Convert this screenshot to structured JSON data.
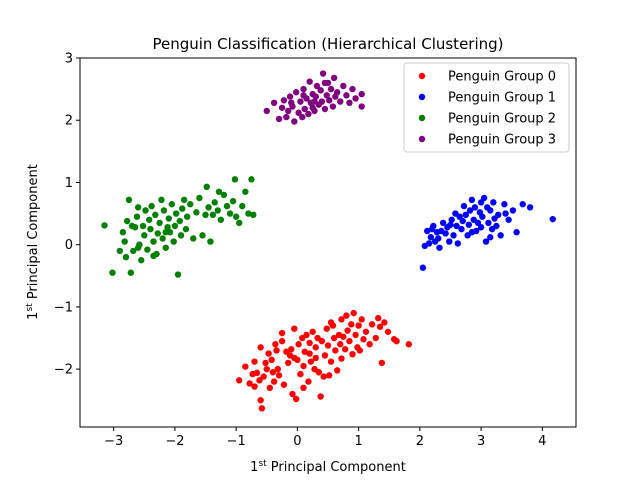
{
  "chart_data": {
    "type": "scatter",
    "title": "Penguin Classification (Hierarchical Clustering)",
    "xlabel": "1st Principal Component",
    "ylabel": "1st Principal Component",
    "xlim": [
      -3.55,
      4.55
    ],
    "ylim": [
      -2.93,
      3.0
    ],
    "x_ticks": [
      -3,
      -2,
      -1,
      0,
      1,
      2,
      3,
      4
    ],
    "y_ticks": [
      -2,
      -1,
      0,
      1,
      2,
      3
    ],
    "x_tick_labels": [
      "−3",
      "−2",
      "−1",
      "0",
      "1",
      "2",
      "3",
      "4"
    ],
    "y_tick_labels": [
      "−2",
      "−1",
      "0",
      "1",
      "2",
      "3"
    ],
    "legend_position": "upper right",
    "grid": false,
    "series": [
      {
        "name": "Penguin Group 0",
        "color": "#ff0000",
        "points": [
          [
            -0.95,
            -2.18
          ],
          [
            -0.85,
            -1.96
          ],
          [
            -0.78,
            -2.23
          ],
          [
            -0.73,
            -2.08
          ],
          [
            -0.7,
            -2.28
          ],
          [
            -0.66,
            -2.06
          ],
          [
            -0.62,
            -2.18
          ],
          [
            -0.6,
            -1.65
          ],
          [
            -0.6,
            -2.5
          ],
          [
            -0.58,
            -2.63
          ],
          [
            -0.55,
            -2.12
          ],
          [
            -0.52,
            -1.9
          ],
          [
            -0.5,
            -2.0
          ],
          [
            -0.47,
            -1.75
          ],
          [
            -0.45,
            -2.3
          ],
          [
            -0.42,
            -1.85
          ],
          [
            -0.4,
            -2.05
          ],
          [
            -0.38,
            -2.2
          ],
          [
            -0.36,
            -1.6
          ],
          [
            -0.34,
            -1.7
          ],
          [
            -0.32,
            -2.0
          ],
          [
            -0.3,
            -2.1
          ],
          [
            -0.25,
            -1.55
          ],
          [
            -0.22,
            -2.25
          ],
          [
            -0.18,
            -1.72
          ],
          [
            -0.15,
            -1.9
          ],
          [
            -0.12,
            -1.78
          ],
          [
            -0.1,
            -1.68
          ],
          [
            -0.08,
            -2.4
          ],
          [
            -0.05,
            -1.35
          ],
          [
            -0.05,
            -1.82
          ],
          [
            -0.02,
            -2.48
          ],
          [
            0.0,
            -1.85
          ],
          [
            0.02,
            -1.6
          ],
          [
            0.05,
            -2.08
          ],
          [
            0.08,
            -1.5
          ],
          [
            0.1,
            -1.95
          ],
          [
            0.12,
            -1.72
          ],
          [
            0.15,
            -1.45
          ],
          [
            0.18,
            -2.2
          ],
          [
            0.2,
            -1.58
          ],
          [
            0.2,
            -1.75
          ],
          [
            0.22,
            -1.88
          ],
          [
            0.25,
            -1.4
          ],
          [
            0.28,
            -2.0
          ],
          [
            0.3,
            -1.65
          ],
          [
            0.3,
            -1.82
          ],
          [
            0.33,
            -1.5
          ],
          [
            0.35,
            -2.05
          ],
          [
            0.38,
            -2.44
          ],
          [
            0.4,
            -1.55
          ],
          [
            0.43,
            -2.12
          ],
          [
            0.45,
            -1.78
          ],
          [
            0.48,
            -1.35
          ],
          [
            0.5,
            -1.62
          ],
          [
            0.52,
            -2.1
          ],
          [
            0.55,
            -1.88
          ],
          [
            0.58,
            -1.3
          ],
          [
            0.6,
            -1.5
          ],
          [
            0.62,
            -1.7
          ],
          [
            0.65,
            -2.02
          ],
          [
            0.68,
            -1.45
          ],
          [
            0.7,
            -1.6
          ],
          [
            0.72,
            -1.2
          ],
          [
            0.72,
            -1.83
          ],
          [
            0.75,
            -1.48
          ],
          [
            0.78,
            -1.68
          ],
          [
            0.8,
            -1.14
          ],
          [
            0.82,
            -1.38
          ],
          [
            0.85,
            -1.55
          ],
          [
            0.88,
            -1.28
          ],
          [
            0.9,
            -1.76
          ],
          [
            0.92,
            -1.1
          ],
          [
            0.95,
            -1.45
          ],
          [
            0.98,
            -1.65
          ],
          [
            1.0,
            -1.3
          ],
          [
            1.05,
            -1.2
          ],
          [
            1.08,
            -1.52
          ],
          [
            1.12,
            -1.4
          ],
          [
            1.18,
            -1.6
          ],
          [
            1.22,
            -1.28
          ],
          [
            1.28,
            -1.5
          ],
          [
            1.32,
            -1.18
          ],
          [
            1.35,
            -1.32
          ],
          [
            1.38,
            -1.9
          ],
          [
            1.42,
            -1.25
          ],
          [
            1.48,
            -1.4
          ],
          [
            1.58,
            -1.52
          ],
          [
            1.62,
            -1.55
          ],
          [
            1.82,
            -1.6
          ],
          [
            -0.25,
            -1.42
          ],
          [
            0.55,
            -1.25
          ],
          [
            1.02,
            -1.7
          ],
          [
            -0.7,
            -1.88
          ],
          [
            0.1,
            -2.3
          ]
        ]
      },
      {
        "name": "Penguin Group 1",
        "color": "#0000ff",
        "points": [
          [
            2.05,
            -0.37
          ],
          [
            2.08,
            -0.02
          ],
          [
            2.12,
            0.22
          ],
          [
            2.15,
            0.02
          ],
          [
            2.18,
            0.12
          ],
          [
            2.2,
            0.25
          ],
          [
            2.22,
            0.3
          ],
          [
            2.25,
            0.05
          ],
          [
            2.28,
            0.2
          ],
          [
            2.3,
            0.1
          ],
          [
            2.32,
            -0.05
          ],
          [
            2.35,
            0.22
          ],
          [
            2.38,
            0.35
          ],
          [
            2.42,
            0.18
          ],
          [
            2.45,
            0.28
          ],
          [
            2.48,
            0.05
          ],
          [
            2.52,
            0.4
          ],
          [
            2.55,
            0.15
          ],
          [
            2.58,
            0.5
          ],
          [
            2.6,
            0.3
          ],
          [
            2.62,
            0.02
          ],
          [
            2.65,
            0.45
          ],
          [
            2.68,
            0.25
          ],
          [
            2.7,
            0.38
          ],
          [
            2.72,
            0.62
          ],
          [
            2.75,
            0.48
          ],
          [
            2.78,
            0.15
          ],
          [
            2.8,
            0.32
          ],
          [
            2.82,
            0.55
          ],
          [
            2.85,
            0.72
          ],
          [
            2.88,
            0.4
          ],
          [
            2.9,
            0.6
          ],
          [
            2.92,
            0.22
          ],
          [
            2.95,
            0.35
          ],
          [
            2.98,
            0.52
          ],
          [
            3.0,
            0.28
          ],
          [
            3.02,
            0.45
          ],
          [
            3.05,
            0.75
          ],
          [
            3.08,
            0.05
          ],
          [
            3.1,
            0.6
          ],
          [
            3.12,
            0.35
          ],
          [
            3.15,
            0.55
          ],
          [
            3.18,
            0.25
          ],
          [
            3.2,
            0.68
          ],
          [
            3.22,
            0.42
          ],
          [
            3.25,
            0.3
          ],
          [
            3.28,
            0.48
          ],
          [
            3.32,
            0.15
          ],
          [
            3.38,
            0.65
          ],
          [
            3.45,
            0.4
          ],
          [
            3.52,
            0.55
          ],
          [
            3.58,
            0.2
          ],
          [
            3.68,
            0.65
          ],
          [
            3.8,
            0.6
          ],
          [
            4.17,
            0.41
          ],
          [
            3.0,
            0.68
          ],
          [
            2.85,
            0.2
          ],
          [
            3.15,
            0.12
          ],
          [
            2.5,
            0.32
          ],
          [
            3.4,
            0.5
          ]
        ]
      },
      {
        "name": "Penguin Group 2",
        "color": "#008000",
        "points": [
          [
            -3.15,
            0.31
          ],
          [
            -3.02,
            -0.45
          ],
          [
            -2.9,
            -0.1
          ],
          [
            -2.85,
            0.2
          ],
          [
            -2.82,
            0.05
          ],
          [
            -2.8,
            -0.2
          ],
          [
            -2.78,
            0.38
          ],
          [
            -2.75,
            0.72
          ],
          [
            -2.72,
            -0.45
          ],
          [
            -2.68,
            -0.1
          ],
          [
            -2.65,
            0.28
          ],
          [
            -2.62,
            0.45
          ],
          [
            -2.6,
            0.6
          ],
          [
            -2.58,
            0.0
          ],
          [
            -2.55,
            -0.25
          ],
          [
            -2.52,
            0.3
          ],
          [
            -2.5,
            0.15
          ],
          [
            -2.48,
            0.55
          ],
          [
            -2.45,
            -0.08
          ],
          [
            -2.42,
            0.4
          ],
          [
            -2.4,
            0.25
          ],
          [
            -2.38,
            0.62
          ],
          [
            -2.35,
            0.05
          ],
          [
            -2.32,
            0.48
          ],
          [
            -2.3,
            -0.15
          ],
          [
            -2.28,
            0.18
          ],
          [
            -2.25,
            0.35
          ],
          [
            -2.22,
            0.72
          ],
          [
            -2.2,
            0.1
          ],
          [
            -2.18,
            0.55
          ],
          [
            -2.15,
            -0.05
          ],
          [
            -2.12,
            0.28
          ],
          [
            -2.1,
            0.42
          ],
          [
            -2.08,
            0.2
          ],
          [
            -2.05,
            0.65
          ],
          [
            -2.02,
            0.05
          ],
          [
            -2.0,
            0.3
          ],
          [
            -1.98,
            0.5
          ],
          [
            -1.95,
            -0.48
          ],
          [
            -1.92,
            0.38
          ],
          [
            -1.9,
            0.15
          ],
          [
            -1.88,
            0.58
          ],
          [
            -1.85,
            0.72
          ],
          [
            -1.8,
            0.45
          ],
          [
            -1.75,
            0.65
          ],
          [
            -1.7,
            0.1
          ],
          [
            -1.65,
            0.52
          ],
          [
            -1.6,
            0.75
          ],
          [
            -1.55,
            0.15
          ],
          [
            -1.5,
            0.48
          ],
          [
            -1.48,
            0.93
          ],
          [
            -1.45,
            0.6
          ],
          [
            -1.42,
            0.05
          ],
          [
            -1.38,
            0.48
          ],
          [
            -1.35,
            0.68
          ],
          [
            -1.3,
            0.55
          ],
          [
            -1.28,
            0.85
          ],
          [
            -1.25,
            0.4
          ],
          [
            -1.2,
            0.8
          ],
          [
            -1.15,
            0.62
          ],
          [
            -1.1,
            0.5
          ],
          [
            -1.05,
            0.7
          ],
          [
            -1.02,
            1.05
          ],
          [
            -1.0,
            0.45
          ],
          [
            -0.95,
            0.35
          ],
          [
            -0.9,
            0.62
          ],
          [
            -0.85,
            0.85
          ],
          [
            -0.8,
            0.5
          ],
          [
            -0.75,
            1.05
          ],
          [
            -0.72,
            0.48
          ],
          [
            -2.7,
            0.3
          ],
          [
            -2.35,
            -0.18
          ],
          [
            -2.6,
            -0.05
          ],
          [
            -2.15,
            0.2
          ],
          [
            -1.82,
            0.25
          ]
        ]
      },
      {
        "name": "Penguin Group 3",
        "color": "#800080",
        "points": [
          [
            -0.5,
            2.15
          ],
          [
            -0.38,
            2.28
          ],
          [
            -0.3,
            2.02
          ],
          [
            -0.25,
            2.2
          ],
          [
            -0.22,
            2.32
          ],
          [
            -0.18,
            2.05
          ],
          [
            -0.15,
            2.15
          ],
          [
            -0.12,
            2.38
          ],
          [
            -0.08,
            2.22
          ],
          [
            -0.05,
            1.98
          ],
          [
            -0.02,
            2.45
          ],
          [
            0.02,
            2.12
          ],
          [
            0.05,
            2.3
          ],
          [
            0.08,
            2.05
          ],
          [
            0.1,
            2.5
          ],
          [
            0.12,
            2.18
          ],
          [
            0.15,
            2.35
          ],
          [
            0.18,
            2.1
          ],
          [
            0.2,
            2.62
          ],
          [
            0.22,
            2.28
          ],
          [
            0.25,
            2.42
          ],
          [
            0.28,
            2.15
          ],
          [
            0.3,
            2.38
          ],
          [
            0.32,
            2.55
          ],
          [
            0.35,
            2.25
          ],
          [
            0.38,
            2.48
          ],
          [
            0.4,
            2.3
          ],
          [
            0.42,
            2.75
          ],
          [
            0.45,
            2.18
          ],
          [
            0.48,
            2.4
          ],
          [
            0.5,
            2.6
          ],
          [
            0.52,
            2.32
          ],
          [
            0.55,
            2.5
          ],
          [
            0.58,
            2.22
          ],
          [
            0.6,
            2.68
          ],
          [
            0.62,
            2.38
          ],
          [
            0.65,
            2.45
          ],
          [
            0.7,
            2.3
          ],
          [
            0.75,
            2.55
          ],
          [
            0.8,
            2.4
          ],
          [
            0.85,
            2.28
          ],
          [
            0.9,
            2.5
          ],
          [
            0.95,
            2.35
          ],
          [
            1.05,
            2.22
          ],
          [
            1.05,
            2.42
          ],
          [
            0.28,
            2.3
          ],
          [
            0.1,
            2.4
          ],
          [
            -0.1,
            2.28
          ],
          [
            0.45,
            2.6
          ],
          [
            0.25,
            2.2
          ]
        ]
      }
    ]
  }
}
